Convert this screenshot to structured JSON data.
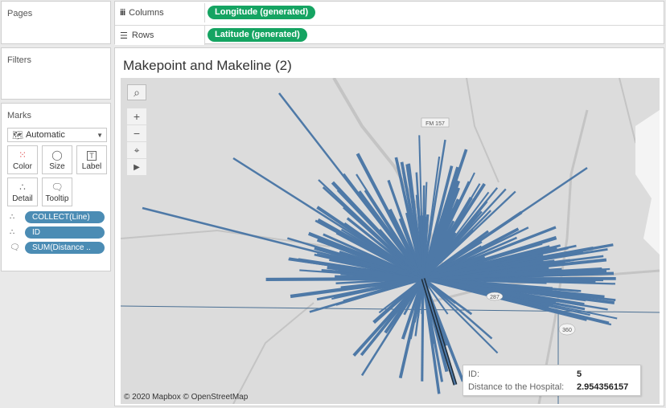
{
  "pages": {
    "title": "Pages"
  },
  "filters": {
    "title": "Filters"
  },
  "marks": {
    "title": "Marks",
    "mark_type": "Automatic",
    "cards": [
      {
        "label": "Color",
        "icon": "color-dots-icon"
      },
      {
        "label": "Size",
        "icon": "size-icon"
      },
      {
        "label": "Label",
        "icon": "label-icon"
      },
      {
        "label": "Detail",
        "icon": "detail-icon"
      },
      {
        "label": "Tooltip",
        "icon": "tooltip-icon"
      }
    ],
    "fields": [
      {
        "label": "COLLECT(Line)",
        "icon": "detail-icon"
      },
      {
        "label": "ID",
        "icon": "detail-icon"
      },
      {
        "label": "SUM(Distance ..",
        "icon": "tooltip-icon"
      }
    ]
  },
  "shelves": {
    "columns_label": "Columns",
    "columns_pill": "Longitude (generated)",
    "rows_label": "Rows",
    "rows_pill": "Latitude (generated)"
  },
  "sheet": {
    "title": "Makepoint and Makeline (2)",
    "attribution": "© 2020 Mapbox © OpenStreetMap",
    "map_labels": {
      "road1": "FM 157",
      "road2": "287",
      "road3": "360"
    },
    "tooltip": {
      "id_label": "ID:",
      "id_value": "5",
      "distance_label": "Distance to the Hospital:",
      "distance_value": "2.954356157"
    }
  },
  "colors": {
    "line": "#4e79a7",
    "highlight": "#1f2d3a",
    "pill_green": "#15a462",
    "pill_blue": "#4b8cb4"
  }
}
